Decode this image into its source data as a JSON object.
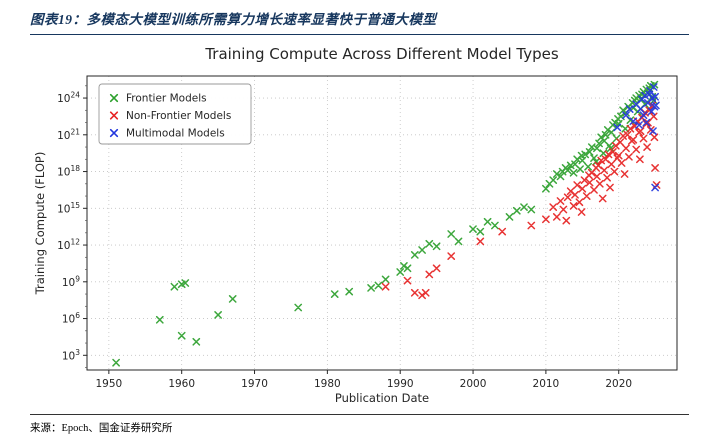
{
  "header": {
    "title": "图表19：多模态大模型训练所需算力增长速率显著快于普通大模型"
  },
  "footer": {
    "source": "来源：Epoch、国金证券研究所"
  },
  "chart_data": {
    "type": "scatter",
    "title": "Training Compute Across Different Model Types",
    "xlabel": "Publication Date",
    "ylabel": "Training Compute (FLOP)",
    "x_range": [
      1947,
      2028
    ],
    "y_log_exponent_range": [
      1.8,
      25.8
    ],
    "x_ticks": [
      1950,
      1960,
      1970,
      1980,
      1990,
      2000,
      2010,
      2020
    ],
    "y_tick_exponents": [
      3,
      6,
      9,
      12,
      15,
      18,
      21,
      24
    ],
    "y_scale": "log10",
    "grid": "dotted",
    "marker": "x",
    "legend_position": "upper-left",
    "series": [
      {
        "name": "Frontier Models",
        "color": "#2ca02c",
        "points": [
          [
            1951,
            2.4
          ],
          [
            1957,
            5.9
          ],
          [
            1959,
            8.6
          ],
          [
            1960,
            8.8
          ],
          [
            1960.5,
            8.9
          ],
          [
            1960,
            4.6
          ],
          [
            1962,
            4.1
          ],
          [
            1965,
            6.3
          ],
          [
            1967,
            7.6
          ],
          [
            1976,
            6.9
          ],
          [
            1981,
            8.0
          ],
          [
            1983,
            8.2
          ],
          [
            1986,
            8.5
          ],
          [
            1987,
            8.7
          ],
          [
            1988,
            9.2
          ],
          [
            1990,
            9.8
          ],
          [
            1990.5,
            10.3
          ],
          [
            1991,
            10.1
          ],
          [
            1992,
            11.2
          ],
          [
            1993,
            11.6
          ],
          [
            1994,
            12.1
          ],
          [
            1995,
            11.9
          ],
          [
            1997,
            12.9
          ],
          [
            1998,
            12.3
          ],
          [
            2000,
            13.3
          ],
          [
            2001,
            13.1
          ],
          [
            2002,
            13.9
          ],
          [
            2003,
            13.6
          ],
          [
            2005,
            14.3
          ],
          [
            2006,
            14.8
          ],
          [
            2007,
            15.1
          ],
          [
            2008,
            14.9
          ],
          [
            2010,
            16.6
          ],
          [
            2010.5,
            17.0
          ],
          [
            2011,
            17.3
          ],
          [
            2011.5,
            17.8
          ],
          [
            2012,
            17.6
          ],
          [
            2012.3,
            18.0
          ],
          [
            2012.7,
            18.3
          ],
          [
            2013,
            18.1
          ],
          [
            2013.4,
            18.5
          ],
          [
            2013.8,
            17.9
          ],
          [
            2014,
            18.6
          ],
          [
            2014.3,
            19.0
          ],
          [
            2014.7,
            18.2
          ],
          [
            2014.9,
            19.3
          ],
          [
            2015,
            18.9
          ],
          [
            2015.4,
            19.4
          ],
          [
            2015.8,
            18.4
          ],
          [
            2016,
            19.6
          ],
          [
            2016.3,
            20.0
          ],
          [
            2016.6,
            19.1
          ],
          [
            2016.9,
            18.8
          ],
          [
            2017,
            19.9
          ],
          [
            2017.3,
            20.3
          ],
          [
            2017.6,
            20.8
          ],
          [
            2017.9,
            19.5
          ],
          [
            2018,
            20.5
          ],
          [
            2018.2,
            21.0
          ],
          [
            2018.5,
            21.4
          ],
          [
            2018.7,
            20.1
          ],
          [
            2018.9,
            19.9
          ],
          [
            2019,
            21.2
          ],
          [
            2019.2,
            21.8
          ],
          [
            2019.5,
            22.0
          ],
          [
            2019.7,
            20.7
          ],
          [
            2019.9,
            22.3
          ],
          [
            2020,
            21.9
          ],
          [
            2020.3,
            22.5
          ],
          [
            2020.6,
            23.0
          ],
          [
            2020.9,
            21.5
          ],
          [
            2021,
            22.8
          ],
          [
            2021.3,
            23.3
          ],
          [
            2021.6,
            22.2
          ],
          [
            2021.9,
            23.6
          ],
          [
            2022,
            23.2
          ],
          [
            2022.2,
            23.8
          ],
          [
            2022.4,
            24.0
          ],
          [
            2022.6,
            22.9
          ],
          [
            2022.8,
            24.2
          ],
          [
            2023,
            23.9
          ],
          [
            2023.2,
            24.3
          ],
          [
            2023.4,
            24.5
          ],
          [
            2023.6,
            23.5
          ],
          [
            2023.8,
            24.7
          ],
          [
            2024,
            24.4
          ],
          [
            2024.2,
            24.8
          ],
          [
            2024.4,
            25.0
          ],
          [
            2024.6,
            24.1
          ],
          [
            2024.8,
            23.8
          ],
          [
            2024.9,
            25.1
          ]
        ]
      },
      {
        "name": "Non-Frontier Models",
        "color": "#e62222",
        "points": [
          [
            1988,
            8.6
          ],
          [
            1991,
            9.1
          ],
          [
            1992,
            8.1
          ],
          [
            1993,
            7.9
          ],
          [
            1993.5,
            8.1
          ],
          [
            1994,
            9.6
          ],
          [
            1995,
            10.1
          ],
          [
            1997,
            11.1
          ],
          [
            2001,
            12.3
          ],
          [
            2004,
            13.1
          ],
          [
            2008,
            13.6
          ],
          [
            2010,
            14.1
          ],
          [
            2011,
            15.1
          ],
          [
            2011.5,
            14.3
          ],
          [
            2012,
            15.6
          ],
          [
            2012.4,
            14.9
          ],
          [
            2012.8,
            14.0
          ],
          [
            2013,
            15.9
          ],
          [
            2013.4,
            16.4
          ],
          [
            2013.8,
            15.2
          ],
          [
            2014,
            16.1
          ],
          [
            2014.3,
            16.9
          ],
          [
            2014.6,
            15.5
          ],
          [
            2014.9,
            14.7
          ],
          [
            2015,
            16.6
          ],
          [
            2015.3,
            17.3
          ],
          [
            2015.6,
            16.0
          ],
          [
            2015.9,
            17.7
          ],
          [
            2016,
            17.1
          ],
          [
            2016.3,
            17.9
          ],
          [
            2016.6,
            16.5
          ],
          [
            2016.9,
            18.3
          ],
          [
            2017,
            17.6
          ],
          [
            2017.2,
            18.5
          ],
          [
            2017.4,
            17.0
          ],
          [
            2017.6,
            18.9
          ],
          [
            2017.8,
            15.8
          ],
          [
            2018,
            18.1
          ],
          [
            2018.2,
            19.0
          ],
          [
            2018.4,
            17.5
          ],
          [
            2018.6,
            19.4
          ],
          [
            2018.8,
            16.7
          ],
          [
            2019,
            18.6
          ],
          [
            2019.2,
            19.6
          ],
          [
            2019.4,
            18.0
          ],
          [
            2019.6,
            20.1
          ],
          [
            2019.8,
            19.1
          ],
          [
            2020,
            19.3
          ],
          [
            2020.2,
            20.4
          ],
          [
            2020.4,
            18.7
          ],
          [
            2020.6,
            20.9
          ],
          [
            2020.8,
            17.8
          ],
          [
            2021,
            19.9
          ],
          [
            2021.2,
            21.0
          ],
          [
            2021.4,
            19.2
          ],
          [
            2021.6,
            21.5
          ],
          [
            2021.8,
            20.5
          ],
          [
            2022,
            20.6
          ],
          [
            2022.2,
            21.7
          ],
          [
            2022.4,
            19.8
          ],
          [
            2022.6,
            22.1
          ],
          [
            2022.8,
            21.2
          ],
          [
            2022.9,
            19.0
          ],
          [
            2023,
            21.3
          ],
          [
            2023.2,
            22.4
          ],
          [
            2023.4,
            20.7
          ],
          [
            2023.6,
            22.8
          ],
          [
            2023.8,
            21.9
          ],
          [
            2023.9,
            20.0
          ],
          [
            2024,
            22.0
          ],
          [
            2024.2,
            23.0
          ],
          [
            2024.4,
            21.4
          ],
          [
            2024.6,
            23.4
          ],
          [
            2024.8,
            22.5
          ],
          [
            2024.9,
            20.8
          ],
          [
            2025,
            18.3
          ],
          [
            2025.2,
            16.9
          ]
        ]
      },
      {
        "name": "Multimodal Models",
        "color": "#2236dd",
        "points": [
          [
            2019.8,
            21.6
          ],
          [
            2021,
            22.6
          ],
          [
            2021.5,
            23.1
          ],
          [
            2022,
            22.1
          ],
          [
            2022.4,
            23.5
          ],
          [
            2022.8,
            21.8
          ],
          [
            2023,
            23.1
          ],
          [
            2023.2,
            23.9
          ],
          [
            2023.4,
            22.6
          ],
          [
            2023.6,
            24.2
          ],
          [
            2023.8,
            22.0
          ],
          [
            2024,
            23.6
          ],
          [
            2024.2,
            24.3
          ],
          [
            2024.3,
            24.6
          ],
          [
            2024.5,
            22.9
          ],
          [
            2024.6,
            24.0
          ],
          [
            2024.7,
            21.3
          ],
          [
            2024.8,
            24.9
          ],
          [
            2024.9,
            23.3
          ],
          [
            2025,
            24.1
          ],
          [
            2025.1,
            23.4
          ],
          [
            2025,
            16.7
          ]
        ]
      }
    ]
  }
}
